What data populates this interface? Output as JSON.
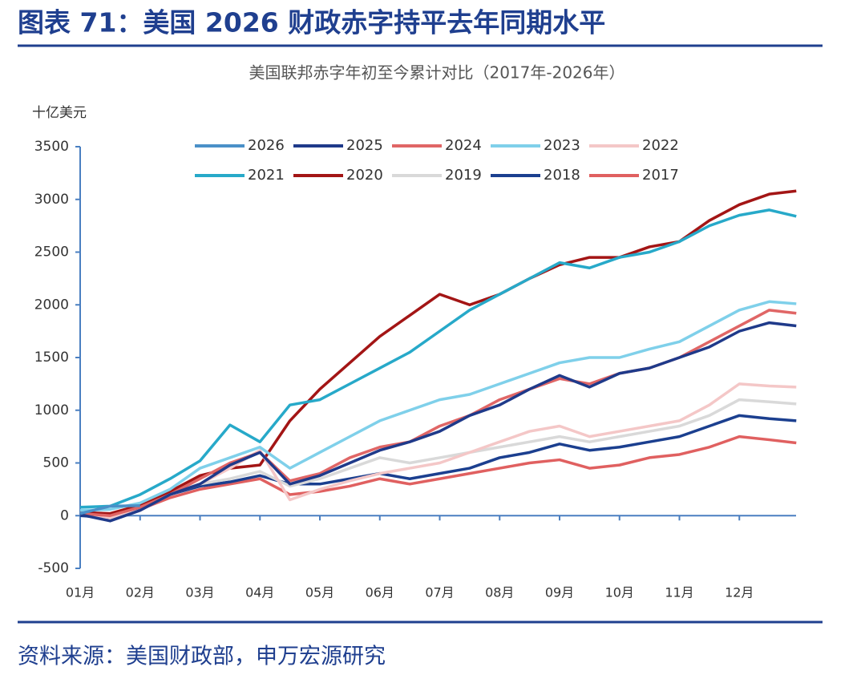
{
  "header": {
    "title": "图表 71：美国 2026 财政赤字持平去年同期水平"
  },
  "chart_data": {
    "type": "line",
    "title": "美国联邦赤字年初至今累计对比（2017年-2026年）",
    "y_label": "十亿美元",
    "x": [
      1,
      1.5,
      2,
      2.5,
      3,
      3.5,
      4,
      4.5,
      5,
      5.5,
      6,
      6.5,
      7,
      7.5,
      8,
      8.5,
      9,
      9.5,
      10,
      10.5,
      11,
      11.5,
      12,
      12.5,
      12.95
    ],
    "xlim": [
      1,
      13
    ],
    "xticks": [
      {
        "value": 1,
        "label": "01月"
      },
      {
        "value": 2,
        "label": "02月"
      },
      {
        "value": 3,
        "label": "03月"
      },
      {
        "value": 4,
        "label": "04月"
      },
      {
        "value": 5,
        "label": "05月"
      },
      {
        "value": 6,
        "label": "06月"
      },
      {
        "value": 7,
        "label": "07月"
      },
      {
        "value": 8,
        "label": "08月"
      },
      {
        "value": 9,
        "label": "09月"
      },
      {
        "value": 10,
        "label": "10月"
      },
      {
        "value": 11,
        "label": "11月"
      },
      {
        "value": 12,
        "label": "12月"
      }
    ],
    "ylim": [
      -500,
      3500
    ],
    "yticks": [
      -500,
      0,
      500,
      1000,
      1500,
      2000,
      2500,
      3000,
      3500
    ],
    "series": [
      {
        "name": "2026",
        "color": "#4a90c8",
        "values": [
          20,
          90,
          95,
          null,
          null,
          null,
          null,
          null,
          null,
          null,
          null,
          null,
          null,
          null,
          null,
          null,
          null,
          null,
          null,
          null,
          null,
          null,
          null,
          null,
          null
        ]
      },
      {
        "name": "2025",
        "color": "#1f3a8a",
        "values": [
          10,
          -50,
          50,
          200,
          300,
          480,
          600,
          300,
          380,
          500,
          620,
          700,
          800,
          950,
          1050,
          1200,
          1330,
          1220,
          1350,
          1400,
          1500,
          1600,
          1750,
          1830,
          1800
        ]
      },
      {
        "name": "2024",
        "color": "#e06666",
        "values": [
          20,
          0,
          80,
          200,
          350,
          500,
          600,
          330,
          400,
          550,
          650,
          700,
          850,
          950,
          1100,
          1200,
          1300,
          1250,
          1350,
          1400,
          1500,
          1650,
          1800,
          1950,
          1920
        ]
      },
      {
        "name": "2023",
        "color": "#7fd0ea",
        "values": [
          50,
          60,
          120,
          250,
          450,
          550,
          650,
          450,
          600,
          750,
          900,
          1000,
          1100,
          1150,
          1250,
          1350,
          1450,
          1500,
          1500,
          1580,
          1650,
          1800,
          1950,
          2030,
          2010
        ]
      },
      {
        "name": "2022",
        "color": "#f4c7c7",
        "values": [
          10,
          -20,
          50,
          200,
          300,
          450,
          620,
          150,
          250,
          330,
          400,
          450,
          500,
          600,
          700,
          800,
          850,
          750,
          800,
          850,
          900,
          1050,
          1250,
          1230,
          1220
        ]
      },
      {
        "name": "2021",
        "color": "#27a9c9",
        "values": [
          80,
          90,
          200,
          350,
          520,
          860,
          700,
          1050,
          1100,
          1250,
          1400,
          1550,
          1750,
          1950,
          2100,
          2250,
          2400,
          2350,
          2450,
          2500,
          2600,
          2750,
          2850,
          2900,
          2840
        ]
      },
      {
        "name": "2020",
        "color": "#a31515",
        "values": [
          30,
          20,
          100,
          230,
          380,
          450,
          480,
          900,
          1200,
          1450,
          1700,
          1900,
          2100,
          2000,
          2100,
          2250,
          2380,
          2450,
          2450,
          2550,
          2600,
          2800,
          2950,
          3050,
          3080
        ]
      },
      {
        "name": "2019",
        "color": "#d9d9d9",
        "values": [
          20,
          10,
          100,
          220,
          300,
          350,
          420,
          280,
          350,
          450,
          550,
          500,
          550,
          600,
          650,
          700,
          750,
          700,
          750,
          800,
          850,
          950,
          1100,
          1080,
          1060
        ]
      },
      {
        "name": "2018",
        "color": "#1b3f8f",
        "values": [
          0,
          -20,
          80,
          200,
          280,
          320,
          380,
          300,
          300,
          350,
          400,
          350,
          400,
          450,
          550,
          600,
          680,
          620,
          650,
          700,
          750,
          850,
          950,
          920,
          900
        ]
      },
      {
        "name": "2017",
        "color": "#e06060",
        "values": [
          10,
          0,
          60,
          170,
          250,
          300,
          350,
          200,
          230,
          280,
          350,
          300,
          350,
          400,
          450,
          500,
          530,
          450,
          480,
          550,
          580,
          650,
          750,
          720,
          690
        ]
      }
    ]
  },
  "footer": {
    "source": "资料来源：美国财政部，申万宏源研究"
  }
}
